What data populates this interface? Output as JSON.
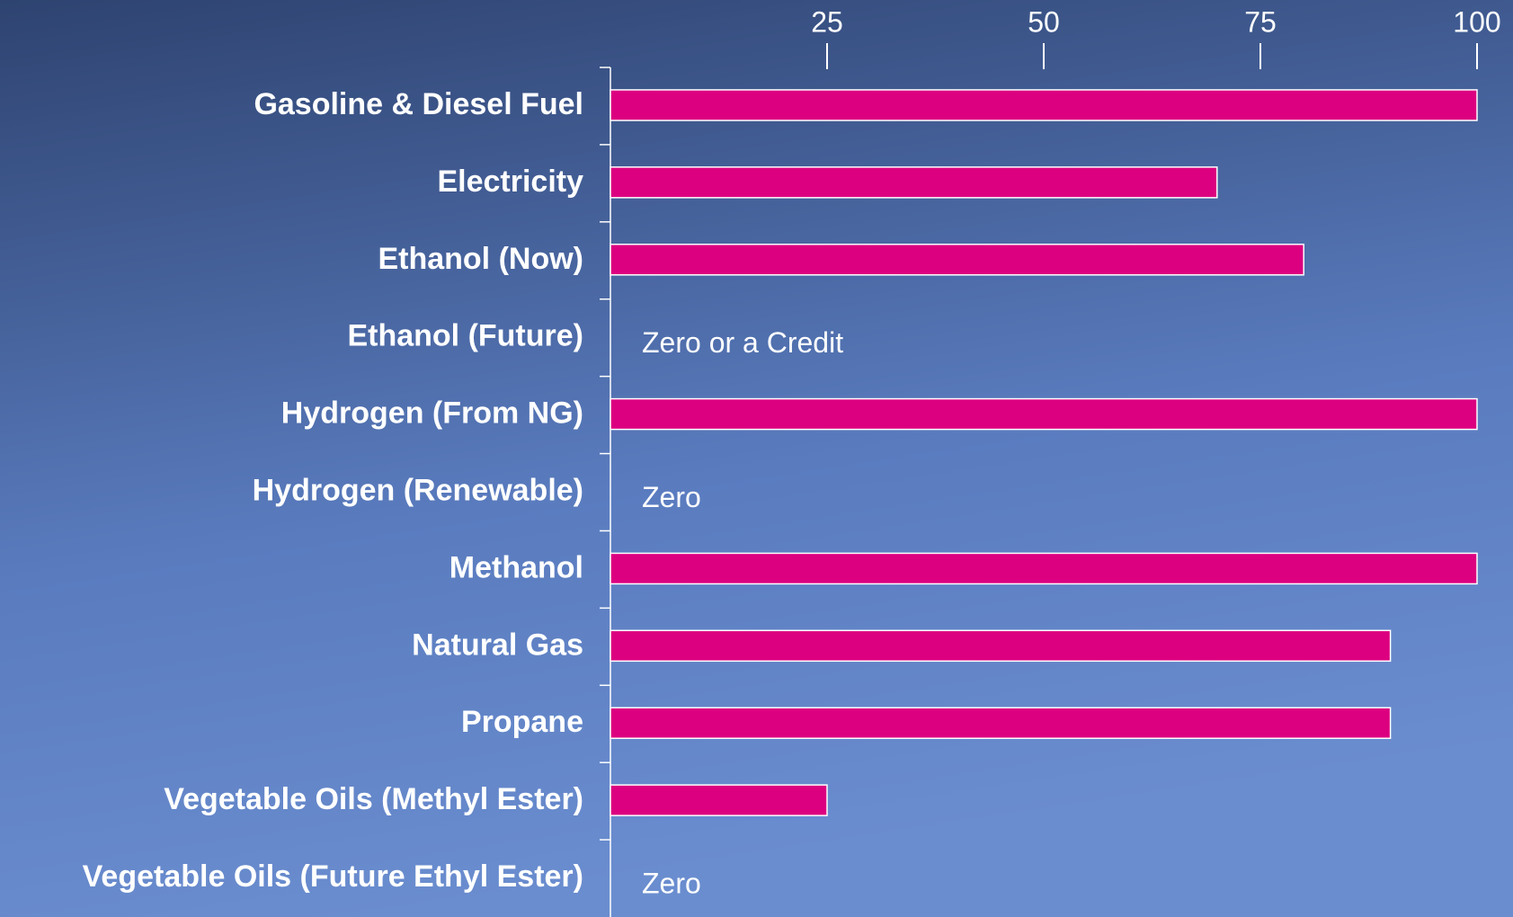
{
  "chart_data": {
    "type": "bar",
    "orientation": "horizontal",
    "categories": [
      "Gasoline & Diesel Fuel",
      "Electricity",
      "Ethanol (Now)",
      "Ethanol (Future)",
      "Hydrogen (From NG)",
      "Hydrogen (Renewable)",
      "Methanol",
      "Natural Gas",
      "Propane",
      "Vegetable Oils (Methyl Ester)",
      "Vegetable Oils (Future Ethyl Ester)"
    ],
    "values": [
      100,
      70,
      80,
      0,
      100,
      0,
      100,
      90,
      90,
      25,
      0
    ],
    "value_labels": [
      null,
      null,
      null,
      "Zero or a Credit",
      null,
      "Zero",
      null,
      null,
      null,
      null,
      "Zero"
    ],
    "color": "#dc0080",
    "xlim": [
      0,
      100
    ],
    "xticks": [
      25,
      50,
      75,
      100
    ]
  }
}
